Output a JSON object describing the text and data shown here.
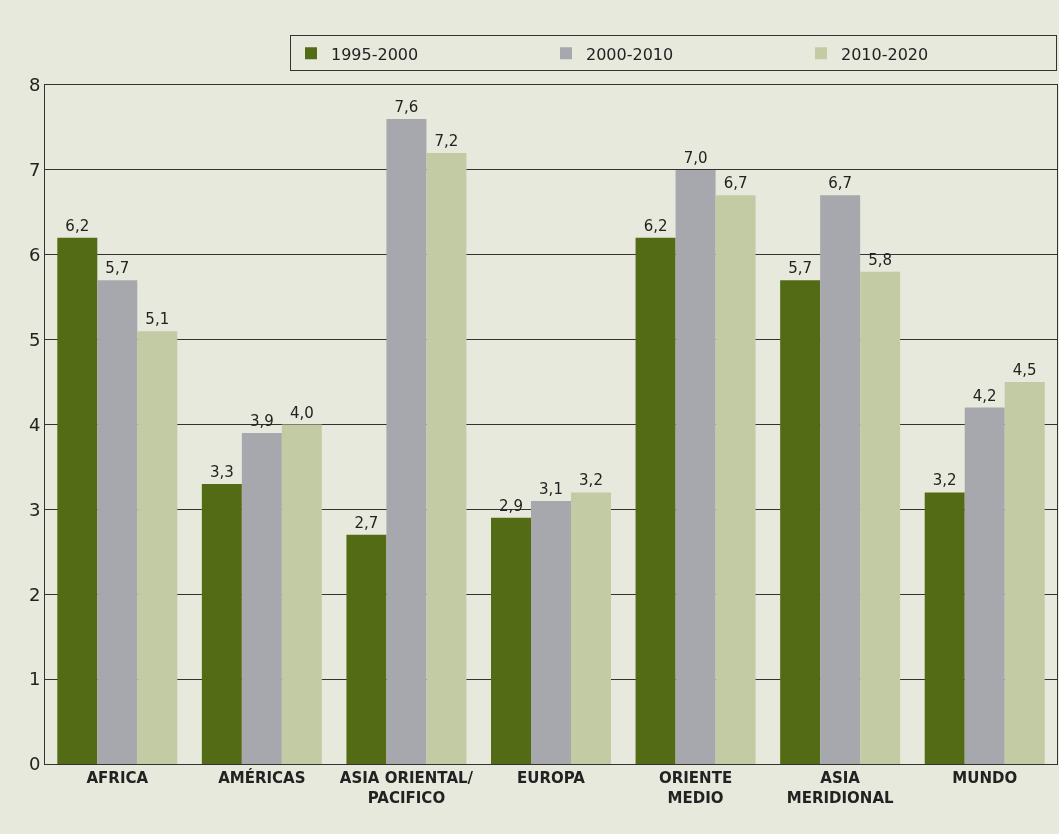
{
  "chart_data": {
    "type": "bar",
    "categories": [
      "AFRICA",
      "AMÉRICAS",
      "ASIA ORIENTAL/\nPACIFICO",
      "EUROPA",
      "ORIENTE\nMEDIO",
      "ASIA\nMERIDIONAL",
      "MUNDO"
    ],
    "series": [
      {
        "name": "1995-2000",
        "color": "#536b14",
        "values": [
          6.2,
          3.3,
          2.7,
          2.9,
          6.2,
          5.7,
          3.2
        ],
        "value_labels": [
          "6,2",
          "3,3",
          "2,7",
          "2,9",
          "6,2",
          "5,7",
          "3,2"
        ]
      },
      {
        "name": "2000-2010",
        "color": "#a7a8ad",
        "values": [
          5.7,
          3.9,
          7.6,
          3.1,
          7.0,
          6.7,
          4.2
        ],
        "value_labels": [
          "5,7",
          "3,9",
          "7,6",
          "3,1",
          "7,0",
          "6,7",
          "4,2"
        ]
      },
      {
        "name": "2010-2020",
        "color": "#c3cba5",
        "values": [
          5.1,
          4.0,
          7.2,
          3.2,
          6.7,
          5.8,
          4.5
        ],
        "value_labels": [
          "5,1",
          "4,0",
          "7,2",
          "3,2",
          "6,7",
          "5,8",
          "4,5"
        ]
      }
    ],
    "ylim": [
      0,
      8
    ],
    "yticks": [
      0,
      1,
      2,
      3,
      4,
      5,
      6,
      7,
      8
    ],
    "grid": "y",
    "legend": "top"
  }
}
